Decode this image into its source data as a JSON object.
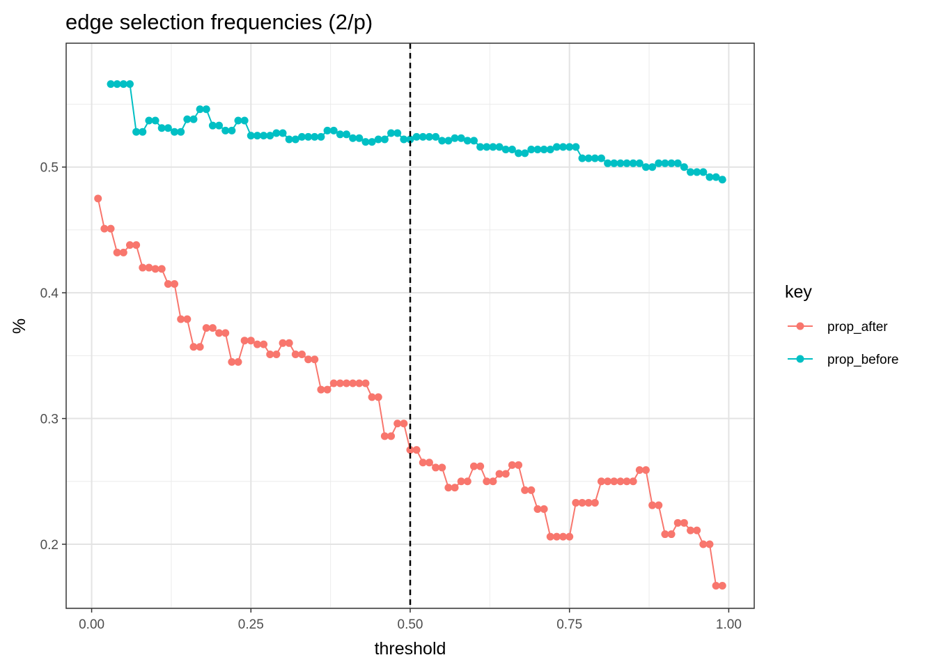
{
  "chart_data": {
    "type": "line",
    "title": "edge selection frequencies (2/p)",
    "xlabel": "threshold",
    "ylabel": "%",
    "xlim": [
      -0.04,
      1.04
    ],
    "ylim": [
      0.149,
      0.5985
    ],
    "x_ticks": [
      0,
      0.25,
      0.5,
      0.75,
      1
    ],
    "x_tick_labels": [
      "0.00",
      "0.25",
      "0.50",
      "0.75",
      "1.00"
    ],
    "y_ticks": [
      0.2,
      0.3,
      0.4,
      0.5
    ],
    "y_tick_labels": [
      "0.2",
      "0.3",
      "0.4",
      "0.5"
    ],
    "grid": true,
    "vline": {
      "x": 0.5,
      "style": "dashed"
    },
    "legend": {
      "title": "key",
      "position": "right"
    },
    "series": [
      {
        "name": "prop_after",
        "color": "#F8766D",
        "x": [
          0.01,
          0.02,
          0.03,
          0.04,
          0.05,
          0.06,
          0.07,
          0.08,
          0.09,
          0.1,
          0.11,
          0.12,
          0.13,
          0.14,
          0.15,
          0.16,
          0.17,
          0.18,
          0.19,
          0.2,
          0.21,
          0.22,
          0.23,
          0.24,
          0.25,
          0.26,
          0.27,
          0.28,
          0.29,
          0.3,
          0.31,
          0.32,
          0.33,
          0.34,
          0.35,
          0.36,
          0.37,
          0.38,
          0.39,
          0.4,
          0.41,
          0.42,
          0.43,
          0.44,
          0.45,
          0.46,
          0.47,
          0.48,
          0.49,
          0.5,
          0.51,
          0.52,
          0.53,
          0.54,
          0.55,
          0.56,
          0.57,
          0.58,
          0.59,
          0.6,
          0.61,
          0.62,
          0.63,
          0.64,
          0.65,
          0.66,
          0.67,
          0.68,
          0.69,
          0.7,
          0.71,
          0.72,
          0.73,
          0.74,
          0.75,
          0.76,
          0.77,
          0.78,
          0.79,
          0.8,
          0.81,
          0.82,
          0.83,
          0.84,
          0.85,
          0.86,
          0.87,
          0.88,
          0.89,
          0.9,
          0.91,
          0.92,
          0.93,
          0.94,
          0.95,
          0.96,
          0.97,
          0.98,
          0.99
        ],
        "values": [
          0.475,
          0.451,
          0.451,
          0.432,
          0.432,
          0.438,
          0.438,
          0.42,
          0.42,
          0.419,
          0.419,
          0.407,
          0.407,
          0.379,
          0.379,
          0.357,
          0.357,
          0.372,
          0.372,
          0.368,
          0.368,
          0.345,
          0.345,
          0.362,
          0.362,
          0.359,
          0.359,
          0.351,
          0.351,
          0.36,
          0.36,
          0.351,
          0.351,
          0.347,
          0.347,
          0.323,
          0.323,
          0.328,
          0.328,
          0.328,
          0.328,
          0.328,
          0.328,
          0.317,
          0.317,
          0.286,
          0.286,
          0.296,
          0.296,
          0.275,
          0.275,
          0.265,
          0.265,
          0.261,
          0.261,
          0.245,
          0.245,
          0.25,
          0.25,
          0.262,
          0.262,
          0.25,
          0.25,
          0.256,
          0.256,
          0.263,
          0.263,
          0.243,
          0.243,
          0.228,
          0.228,
          0.206,
          0.206,
          0.206,
          0.206,
          0.233,
          0.233,
          0.233,
          0.233,
          0.25,
          0.25,
          0.25,
          0.25,
          0.25,
          0.25,
          0.259,
          0.259,
          0.231,
          0.231,
          0.208,
          0.208,
          0.217,
          0.217,
          0.211,
          0.211,
          0.2,
          0.2,
          0.167,
          0.167
        ]
      },
      {
        "name": "prop_before",
        "color": "#00BFC4",
        "x": [
          0.03,
          0.04,
          0.05,
          0.06,
          0.07,
          0.08,
          0.09,
          0.1,
          0.11,
          0.12,
          0.13,
          0.14,
          0.15,
          0.16,
          0.17,
          0.18,
          0.19,
          0.2,
          0.21,
          0.22,
          0.23,
          0.24,
          0.25,
          0.26,
          0.27,
          0.28,
          0.29,
          0.3,
          0.31,
          0.32,
          0.33,
          0.34,
          0.35,
          0.36,
          0.37,
          0.38,
          0.39,
          0.4,
          0.41,
          0.42,
          0.43,
          0.44,
          0.45,
          0.46,
          0.47,
          0.48,
          0.49,
          0.5,
          0.51,
          0.52,
          0.53,
          0.54,
          0.55,
          0.56,
          0.57,
          0.58,
          0.59,
          0.6,
          0.61,
          0.62,
          0.63,
          0.64,
          0.65,
          0.66,
          0.67,
          0.68,
          0.69,
          0.7,
          0.71,
          0.72,
          0.73,
          0.74,
          0.75,
          0.76,
          0.77,
          0.78,
          0.79,
          0.8,
          0.81,
          0.82,
          0.83,
          0.84,
          0.85,
          0.86,
          0.87,
          0.88,
          0.89,
          0.9,
          0.91,
          0.92,
          0.93,
          0.94,
          0.95,
          0.96,
          0.97,
          0.98,
          0.99
        ],
        "values": [
          0.566,
          0.566,
          0.566,
          0.566,
          0.528,
          0.528,
          0.537,
          0.537,
          0.531,
          0.531,
          0.528,
          0.528,
          0.538,
          0.538,
          0.546,
          0.546,
          0.533,
          0.533,
          0.529,
          0.529,
          0.537,
          0.537,
          0.525,
          0.525,
          0.525,
          0.525,
          0.527,
          0.527,
          0.522,
          0.522,
          0.524,
          0.524,
          0.524,
          0.524,
          0.529,
          0.529,
          0.526,
          0.526,
          0.523,
          0.523,
          0.52,
          0.52,
          0.522,
          0.522,
          0.527,
          0.527,
          0.522,
          0.522,
          0.524,
          0.524,
          0.524,
          0.524,
          0.521,
          0.521,
          0.523,
          0.523,
          0.521,
          0.521,
          0.516,
          0.516,
          0.516,
          0.516,
          0.514,
          0.514,
          0.511,
          0.511,
          0.514,
          0.514,
          0.514,
          0.514,
          0.516,
          0.516,
          0.516,
          0.516,
          0.507,
          0.507,
          0.507,
          0.507,
          0.503,
          0.503,
          0.503,
          0.503,
          0.503,
          0.503,
          0.5,
          0.5,
          0.503,
          0.503,
          0.503,
          0.503,
          0.5,
          0.496,
          0.496,
          0.496,
          0.492,
          0.492,
          0.49
        ]
      }
    ]
  }
}
